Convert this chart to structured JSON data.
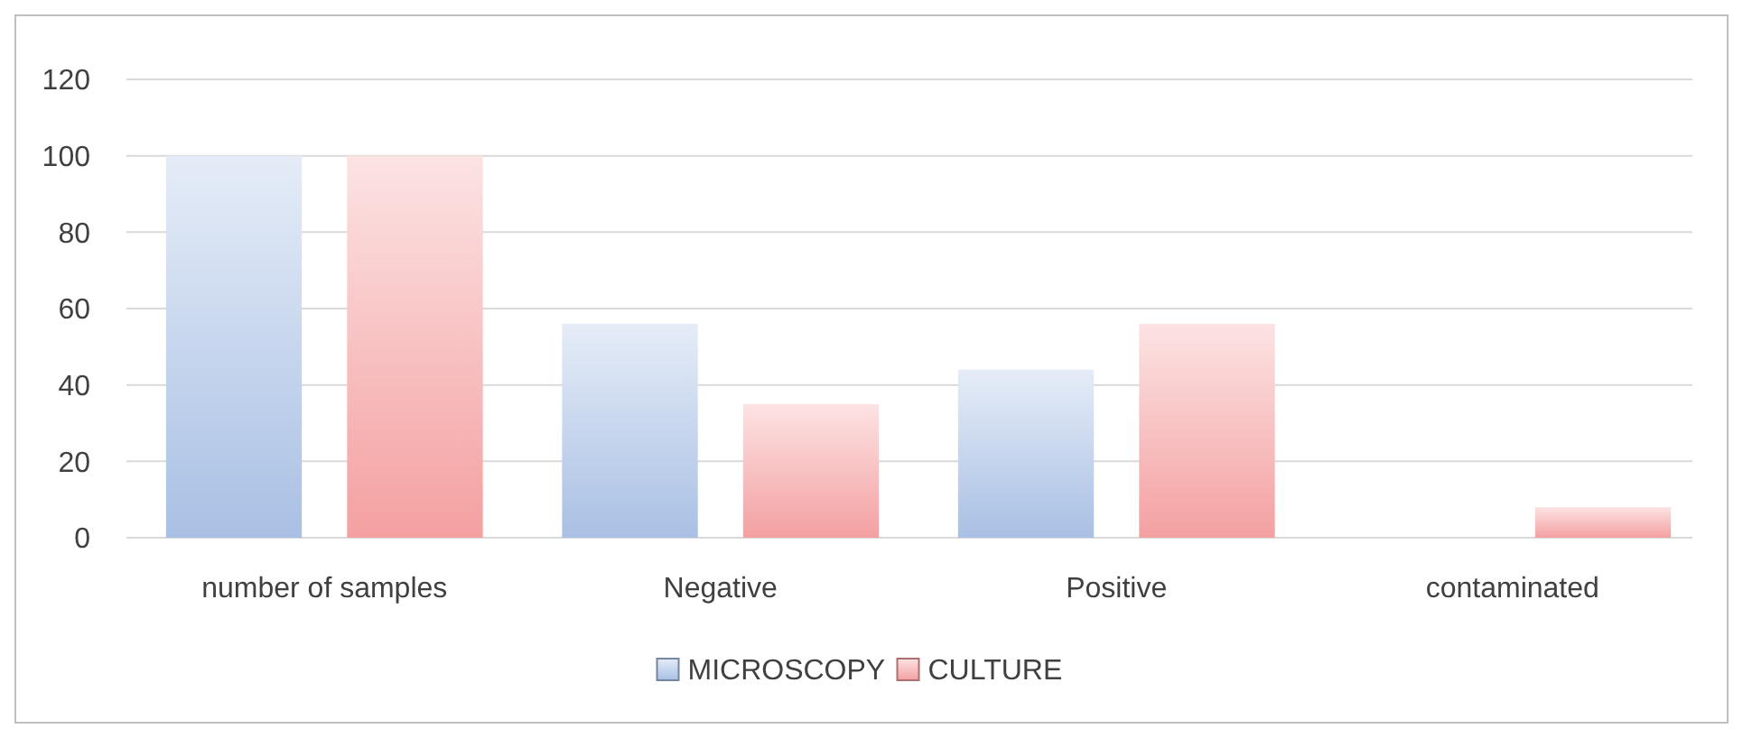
{
  "chart_data": {
    "type": "bar",
    "categories": [
      "number of samples",
      "Negative",
      "Positive",
      "contaminated"
    ],
    "series": [
      {
        "name": "MICROSCOPY",
        "color": "#a9c0e4",
        "values": [
          100,
          56,
          44,
          0
        ]
      },
      {
        "name": "CULTURE",
        "color": "#f4a0a1",
        "values": [
          100,
          35,
          56,
          8
        ]
      }
    ],
    "ylim": [
      0,
      120
    ],
    "yticks": [
      0,
      20,
      40,
      60,
      80,
      100,
      120
    ],
    "grid": "y",
    "legend": "bottom"
  }
}
